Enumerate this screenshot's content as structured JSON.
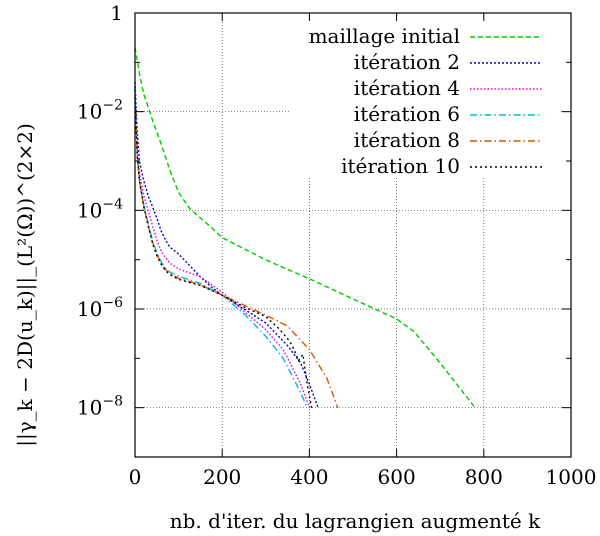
{
  "chart_data": {
    "type": "line",
    "title": "",
    "xlabel": "nb. d'iter. du lagrangien augmenté k",
    "ylabel": "||γ_k − 2D(u_k)||_(L²(Ω))^(2×2)",
    "xlim": [
      0,
      1000
    ],
    "ylim": [
      1e-09,
      1
    ],
    "y_scale": "log",
    "grid": true,
    "legend_position": "top-right",
    "x_ticks": [
      0,
      200,
      400,
      600,
      800,
      1000
    ],
    "x_tick_labels": [
      "0",
      "200",
      "400",
      "600",
      "800",
      "1000"
    ],
    "y_ticks": [
      1,
      0.01,
      0.0001,
      1e-06,
      1e-08
    ],
    "y_tick_labels": [
      {
        "base": "1",
        "exp": ""
      },
      {
        "base": "10",
        "exp": "−2"
      },
      {
        "base": "10",
        "exp": "−4"
      },
      {
        "base": "10",
        "exp": "−6"
      },
      {
        "base": "10",
        "exp": "−8"
      }
    ],
    "series": [
      {
        "name": "maillage initial",
        "color": "#00cc00",
        "dash": "5,3",
        "x": [
          0,
          10,
          20,
          40,
          60,
          80,
          100,
          125,
          150,
          175,
          200,
          300,
          400,
          500,
          600,
          640,
          700,
          780
        ],
        "y": [
          0.2,
          0.06,
          0.023,
          0.0068,
          0.0022,
          0.00065,
          0.00023,
          0.00011,
          7e-05,
          4.5e-05,
          2.8e-05,
          9.9e-06,
          4.1e-06,
          1.6e-06,
          6.3e-07,
          3.5e-07,
          8e-08,
          1e-08
        ]
      },
      {
        "name": "itération 2",
        "color": "#0000cc",
        "dash": "2,2",
        "x": [
          0,
          5,
          10,
          20,
          30,
          40,
          50,
          60,
          70,
          80,
          100,
          120,
          150,
          175,
          200,
          250,
          300,
          350,
          380,
          400,
          420
        ],
        "y": [
          0.04,
          0.004,
          0.001,
          0.0004,
          0.0002,
          0.00012,
          7e-05,
          3.8e-05,
          2.5e-05,
          1.8e-05,
          1.3e-05,
          8.5e-06,
          4.5e-06,
          2.8e-06,
          1.9e-06,
          1e-06,
          5.2e-07,
          1.8e-07,
          8e-08,
          3e-08,
          1e-08
        ]
      },
      {
        "name": "itération 4",
        "color": "#dd00dd",
        "dash": "1.5,2",
        "x": [
          0,
          5,
          10,
          20,
          30,
          40,
          50,
          60,
          70,
          80,
          100,
          150,
          200,
          250,
          300,
          340,
          380,
          400
        ],
        "y": [
          0.03,
          0.002,
          0.0006,
          0.0002,
          0.0001,
          5e-05,
          2.5e-05,
          1.5e-05,
          1.1e-05,
          8.5e-06,
          6.5e-06,
          4.5e-06,
          2.2e-06,
          9e-07,
          3.8e-07,
          1.5e-07,
          3e-08,
          1e-08
        ]
      },
      {
        "name": "itération 6",
        "color": "#00bbdd",
        "dash": "7,3,1.5,3",
        "x": [
          0,
          5,
          10,
          20,
          30,
          40,
          50,
          60,
          70,
          80,
          100,
          150,
          200,
          250,
          300,
          340,
          380,
          395
        ],
        "y": [
          0.03,
          0.0015,
          0.0004,
          0.00013,
          5.5e-05,
          2.5e-05,
          1.4e-05,
          9e-06,
          6.8e-06,
          5.6e-06,
          4.6e-06,
          3.3e-06,
          1.9e-06,
          8e-07,
          2.8e-07,
          1e-07,
          2e-08,
          1e-08
        ]
      },
      {
        "name": "itération 8",
        "color": "#dd5500",
        "dash": "7,3,1.5,3",
        "x": [
          0,
          5,
          10,
          20,
          30,
          40,
          50,
          60,
          70,
          80,
          100,
          150,
          200,
          250,
          300,
          350,
          400,
          440,
          465
        ],
        "y": [
          0.02,
          0.0013,
          0.0004,
          0.00012,
          5e-05,
          2.3e-05,
          1.3e-05,
          8.5e-06,
          6.3e-06,
          5.2e-06,
          4.2e-06,
          3.1e-06,
          1.9e-06,
          1.2e-06,
          7.5e-07,
          4.5e-07,
          1.5e-07,
          4e-08,
          1e-08
        ]
      },
      {
        "name": "itération 10",
        "color": "#000000",
        "dash": "2,3",
        "x": [
          0,
          5,
          10,
          20,
          30,
          40,
          50,
          60,
          70,
          80,
          100,
          150,
          200,
          250,
          300,
          330,
          355,
          365,
          375,
          385,
          395,
          405
        ],
        "y": [
          0.02,
          0.0013,
          0.0004,
          0.00012,
          5e-05,
          2.2e-05,
          1.2e-05,
          8e-06,
          6e-06,
          5e-06,
          4e-06,
          3e-06,
          1.9e-06,
          1.1e-06,
          7e-07,
          4e-07,
          2.2e-07,
          1.5e-07,
          9e-08,
          1.2e-07,
          3e-08,
          1e-08
        ]
      }
    ]
  }
}
